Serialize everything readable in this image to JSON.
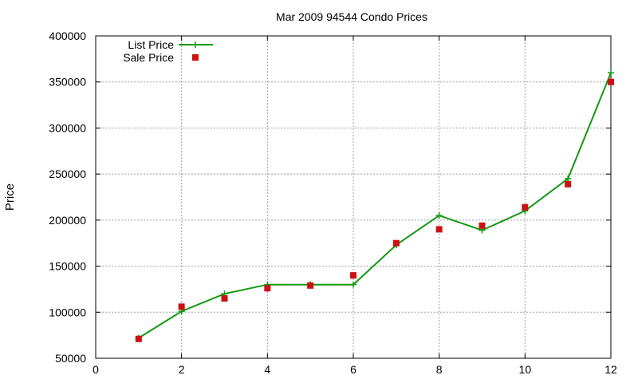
{
  "chart_data": {
    "type": "line",
    "title": "Mar 2009 94544 Condo Prices",
    "xlabel": "",
    "ylabel": "Price",
    "xlim": [
      0,
      12
    ],
    "ylim": [
      50000,
      400000
    ],
    "xticks": [
      0,
      2,
      4,
      6,
      8,
      10,
      12
    ],
    "yticks": [
      50000,
      100000,
      150000,
      200000,
      250000,
      300000,
      350000,
      400000
    ],
    "grid": true,
    "legend_position": "top-left",
    "series": [
      {
        "name": "List Price",
        "style": "line-with-plus-markers",
        "color": "#119911",
        "x": [
          1,
          2,
          3,
          4,
          5,
          6,
          7,
          8,
          9,
          10,
          11,
          12
        ],
        "y": [
          72000,
          101000,
          120000,
          130000,
          130000,
          130000,
          173000,
          205000,
          189000,
          210000,
          245000,
          360000
        ]
      },
      {
        "name": "Sale Price",
        "style": "square-markers",
        "color": "#cc1111",
        "x": [
          1,
          2,
          3,
          4,
          5,
          6,
          7,
          8,
          9,
          10,
          11,
          12
        ],
        "y": [
          71000,
          106000,
          115000,
          126000,
          129000,
          140000,
          175000,
          190000,
          194000,
          214000,
          239000,
          350000
        ]
      }
    ]
  }
}
